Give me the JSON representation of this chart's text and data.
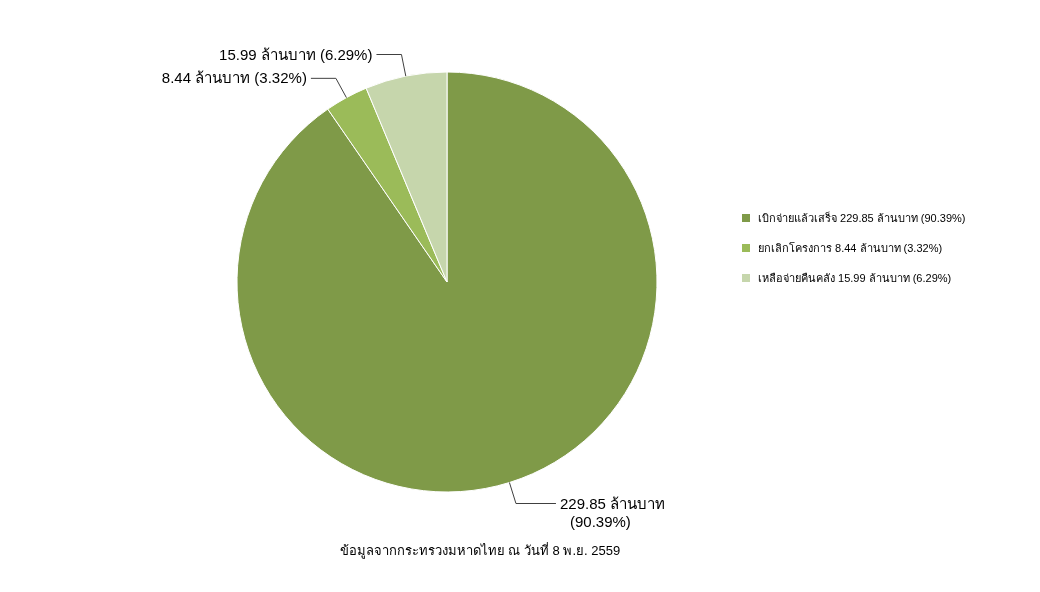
{
  "chart_data": {
    "type": "pie",
    "categories": [
      "เบิกจ่ายแล้วเสร็จ 229.85 ล้านบาท (90.39%)",
      "ยกเลิกโครงการ 8.44 ล้านบาท (3.32%)",
      "เหลือจ่ายคืนคลัง 15.99 ล้านบาท (6.29%)"
    ],
    "values": [
      229.85,
      8.44,
      15.99
    ],
    "colors": [
      "#7f9a48",
      "#9bbb59",
      "#c6d6ac"
    ],
    "value_labels": [
      "229.85 ล้านบาท (90.39%)",
      "8.44 ล้านบาท (3.32%)",
      "15.99 ล้านบาท (6.29%)"
    ],
    "legend": "right",
    "annotations": [
      "ข้อมูลจากกระทรวงมหาดไทย ณ วันที่ 8 พ.ย. 2559"
    ]
  }
}
